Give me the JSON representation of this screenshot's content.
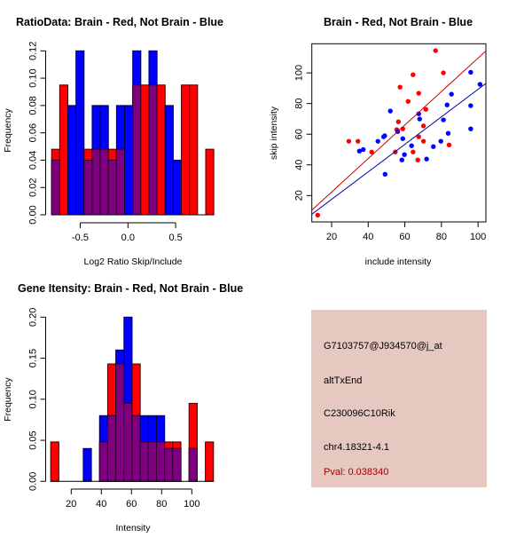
{
  "chart_data": [
    {
      "type": "bar",
      "title": "RatioData: Brain - Red, Not Brain - Blue",
      "xlabel": "Log2 Ratio Skip/Include",
      "ylabel": "Frequency",
      "bin_start": -0.8,
      "bin_width": 0.085,
      "xticks": [
        -0.5,
        0.0,
        0.5
      ],
      "xtick_labels": [
        "-0.5",
        "0.0",
        "0.5"
      ],
      "yticks": [
        0,
        0.02,
        0.04,
        0.06,
        0.08,
        0.1,
        0.12
      ],
      "ytick_labels": [
        "0.00",
        "0.02",
        "0.04",
        "0.06",
        "0.08",
        "0.10",
        "0.12"
      ],
      "ylim": [
        0,
        0.12
      ],
      "series": [
        {
          "name": "Brain",
          "color": "#ff0000",
          "values": [
            0.048,
            0.095,
            0,
            0,
            0.048,
            0.048,
            0.048,
            0.048,
            0.048,
            0,
            0.095,
            0.095,
            0.095,
            0.095,
            0,
            0,
            0.095,
            0.095,
            0,
            0.048
          ]
        },
        {
          "name": "Not Brain",
          "color": "#0000ff",
          "values": [
            0.04,
            0,
            0.08,
            0.12,
            0.04,
            0.08,
            0.08,
            0.04,
            0.08,
            0.08,
            0.12,
            0,
            0.12,
            0,
            0.08,
            0.04,
            0,
            0,
            0,
            0
          ]
        }
      ]
    },
    {
      "type": "scatter",
      "title": "Brain - Red, Not Brain - Blue",
      "xlabel": "include intensity",
      "ylabel": "skip intensity",
      "xlim": [
        9.2,
        104.3
      ],
      "ylim": [
        2.8,
        119
      ],
      "xticks": [
        20,
        40,
        60,
        80,
        100
      ],
      "xtick_labels": [
        "20",
        "40",
        "60",
        "80",
        "100"
      ],
      "yticks": [
        20,
        40,
        60,
        80,
        100
      ],
      "ytick_labels": [
        "20",
        "40",
        "60",
        "80",
        "100"
      ],
      "series": [
        {
          "name": "Brain",
          "color": "#ff0000",
          "fit": {
            "slope": 1.092,
            "intercept": 0.45
          },
          "points": [
            [
              12.4,
              7.2
            ],
            [
              29.4,
              55.4
            ],
            [
              34.4,
              55.4
            ],
            [
              41.9,
              48.4
            ],
            [
              55.6,
              63
            ],
            [
              57.4,
              90.7
            ],
            [
              56.5,
              68.1
            ],
            [
              58.9,
              63.5
            ],
            [
              54.8,
              48.4
            ],
            [
              61.8,
              81.4
            ],
            [
              64.5,
              98.8
            ],
            [
              64.5,
              48.4
            ],
            [
              67.6,
              86.7
            ],
            [
              71.5,
              76.2
            ],
            [
              67.6,
              58.3
            ],
            [
              70.2,
              65.4
            ],
            [
              70.2,
              55.4
            ],
            [
              67.1,
              43.2
            ],
            [
              76.8,
              114.5
            ],
            [
              81.1,
              100
            ],
            [
              84.2,
              53
            ]
          ]
        },
        {
          "name": "Not Brain",
          "color": "#0000ff",
          "fit": {
            "slope": 0.897,
            "intercept": -0.45
          },
          "points": [
            [
              35.2,
              49
            ],
            [
              37.3,
              50
            ],
            [
              45.3,
              55.4
            ],
            [
              48.4,
              58.3
            ],
            [
              49,
              59
            ],
            [
              52.1,
              75.1
            ],
            [
              56.1,
              61.7
            ],
            [
              58.9,
              57.1
            ],
            [
              58.4,
              43.2
            ],
            [
              59.8,
              46.7
            ],
            [
              63.7,
              52.5
            ],
            [
              49.2,
              33.9
            ],
            [
              67.6,
              73.3
            ],
            [
              68.1,
              69.9
            ],
            [
              75.6,
              51.9
            ],
            [
              71.9,
              43.8
            ],
            [
              79.7,
              55.4
            ],
            [
              81.1,
              69.3
            ],
            [
              83.1,
              79.1
            ],
            [
              83.7,
              60.6
            ],
            [
              85.5,
              86.1
            ],
            [
              96,
              100.4
            ],
            [
              96,
              78.6
            ],
            [
              96,
              63.5
            ],
            [
              101.1,
              92.5
            ]
          ]
        }
      ]
    },
    {
      "type": "bar",
      "title": "Gene Itensity: Brain - Red, Not Brain - Blue",
      "xlabel": "Intensity",
      "ylabel": "Frequency",
      "bin_start": 6.4,
      "bin_width": 5.4,
      "xticks": [
        20,
        40,
        60,
        80,
        100
      ],
      "xtick_labels": [
        "20",
        "40",
        "60",
        "80",
        "100"
      ],
      "yticks": [
        0,
        0.05,
        0.1,
        0.15,
        0.2
      ],
      "ytick_labels": [
        "0.00",
        "0.05",
        "0.10",
        "0.15",
        "0.20"
      ],
      "ylim": [
        0,
        0.2
      ],
      "series": [
        {
          "name": "Brain",
          "color": "#ff0000",
          "values": [
            0.048,
            0,
            0,
            0,
            0,
            0,
            0.048,
            0.143,
            0.143,
            0.095,
            0.143,
            0.048,
            0.048,
            0.048,
            0.048,
            0.048,
            0,
            0.095,
            0,
            0.048
          ]
        },
        {
          "name": "Not Brain",
          "color": "#0000ff",
          "values": [
            0,
            0,
            0,
            0,
            0.04,
            0,
            0.08,
            0.08,
            0.16,
            0.2,
            0.08,
            0.08,
            0.08,
            0.08,
            0.04,
            0.04,
            0,
            0.04,
            0,
            0
          ]
        }
      ]
    }
  ],
  "info": {
    "probe": "G7103757@J934570@j_at",
    "event": "altTxEnd",
    "gene": "C230096C10Rik",
    "location": "chr4.18321-4.1",
    "pval": "Pval: 0.038340",
    "pval_color": "#990000",
    "background": "#e6c8c0"
  },
  "overlap_color": "#7f007f"
}
